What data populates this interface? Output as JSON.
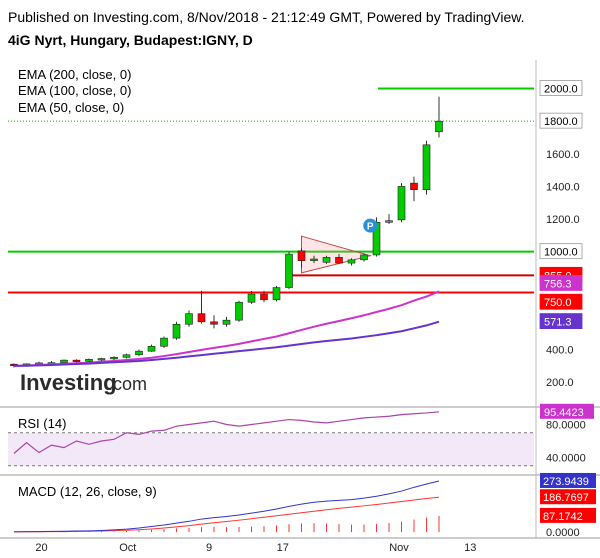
{
  "header": {
    "published_line": "Published on Investing.com, 8/Nov/2018 - 21:12:49 GMT, Powered by TradingView.",
    "symbol_line": "4iG Nyrt, Hungary, Budapest:IGNY, D"
  },
  "watermark": {
    "brand": "Investing",
    "suffix": ".com"
  },
  "price_pane": {
    "legend": [
      "EMA (200, close, 0)",
      "EMA (100, close, 0)",
      "EMA (50, close, 0)"
    ],
    "y_ticks": [
      200,
      400,
      600,
      800,
      1000,
      1200,
      1400,
      1600,
      1800,
      2000
    ],
    "y_tick_labels": [
      "200.0",
      "400.0",
      "",
      "",
      "1000.0",
      "1200.0",
      "1400.0",
      "1600.0",
      "1800.0",
      "2000.0"
    ],
    "ylim": [
      60,
      2175
    ],
    "badges": [
      {
        "value": 2000,
        "label": "2000.0",
        "color": "#ffffff",
        "text_color": "#000000"
      },
      {
        "value": 1800,
        "label": "1800.0",
        "color": "#ffffff",
        "text_color": "#000000"
      },
      {
        "value": 1000,
        "label": "1000.0",
        "color": "#ffffff",
        "text_color": "#000000"
      },
      {
        "value": 855,
        "label": "855.0",
        "color": "#ff0000",
        "text_color": "#ffffff"
      },
      {
        "value": 756.3,
        "label": "756.3",
        "color": "#cc33cc",
        "text_color": "#ffffff"
      },
      {
        "value": 750,
        "label": "750.0",
        "color": "#ff0000",
        "text_color": "#ffffff"
      },
      {
        "value": 571.3,
        "label": "571.3",
        "color": "#6633cc",
        "text_color": "#ffffff"
      }
    ],
    "horizontal_lines": [
      {
        "value": 2000,
        "color": "#00cc00",
        "style": "solid"
      },
      {
        "value": 1800,
        "color": "#00aa00",
        "style": "dotted"
      },
      {
        "value": 1000,
        "color": "#00cc00",
        "style": "solid"
      },
      {
        "value": 855,
        "color": "#cc0000",
        "style": "solid"
      },
      {
        "value": 750,
        "color": "#ff0000",
        "style": "solid"
      }
    ],
    "event_marker": "P"
  },
  "rsi_pane": {
    "label": "RSI (14)",
    "y_tick_labels": [
      "80.0000",
      "40.0000"
    ],
    "current": "95.4423"
  },
  "macd_pane": {
    "label": "MACD (12, 26, close, 9)",
    "y_tick_labels": [
      "0.0000"
    ],
    "badges": [
      {
        "label": "273.9439",
        "color": "#3333cc"
      },
      {
        "label": "186.7697",
        "color": "#ff0000"
      },
      {
        "label": "87.1742",
        "color": "#ff0000"
      }
    ]
  },
  "x_axis": {
    "ticks": [
      "20",
      "Oct",
      "9",
      "17",
      "Nov",
      "13"
    ]
  },
  "colors": {
    "up": "#00cc00",
    "down": "#ff0000",
    "ema200": "#cc33cc",
    "ema100": "#6633cc",
    "ema50": "#6633cc"
  },
  "chart_data": {
    "type": "candlestick",
    "title": "4iG Nyrt, Hungary, Budapest:IGNY, D",
    "candles": [
      {
        "o": 310,
        "h": 315,
        "l": 290,
        "c": 305
      },
      {
        "o": 305,
        "h": 315,
        "l": 295,
        "c": 312
      },
      {
        "o": 312,
        "h": 325,
        "l": 300,
        "c": 318
      },
      {
        "o": 318,
        "h": 330,
        "l": 305,
        "c": 320
      },
      {
        "o": 320,
        "h": 340,
        "l": 310,
        "c": 335
      },
      {
        "o": 335,
        "h": 340,
        "l": 320,
        "c": 328
      },
      {
        "o": 328,
        "h": 345,
        "l": 320,
        "c": 340
      },
      {
        "o": 340,
        "h": 350,
        "l": 330,
        "c": 345
      },
      {
        "o": 345,
        "h": 360,
        "l": 335,
        "c": 352
      },
      {
        "o": 352,
        "h": 375,
        "l": 345,
        "c": 368
      },
      {
        "o": 368,
        "h": 400,
        "l": 360,
        "c": 390
      },
      {
        "o": 390,
        "h": 430,
        "l": 385,
        "c": 420
      },
      {
        "o": 420,
        "h": 480,
        "l": 410,
        "c": 470
      },
      {
        "o": 470,
        "h": 570,
        "l": 460,
        "c": 555
      },
      {
        "o": 555,
        "h": 640,
        "l": 540,
        "c": 620
      },
      {
        "o": 620,
        "h": 760,
        "l": 560,
        "c": 570
      },
      {
        "o": 570,
        "h": 610,
        "l": 530,
        "c": 555
      },
      {
        "o": 555,
        "h": 600,
        "l": 540,
        "c": 580
      },
      {
        "o": 580,
        "h": 700,
        "l": 570,
        "c": 690
      },
      {
        "o": 690,
        "h": 760,
        "l": 680,
        "c": 740
      },
      {
        "o": 740,
        "h": 760,
        "l": 690,
        "c": 705
      },
      {
        "o": 705,
        "h": 790,
        "l": 695,
        "c": 780
      },
      {
        "o": 780,
        "h": 1000,
        "l": 770,
        "c": 985
      },
      {
        "o": 1005,
        "h": 1020,
        "l": 900,
        "c": 945
      },
      {
        "o": 945,
        "h": 975,
        "l": 930,
        "c": 955
      },
      {
        "o": 935,
        "h": 975,
        "l": 925,
        "c": 965
      },
      {
        "o": 965,
        "h": 985,
        "l": 925,
        "c": 930
      },
      {
        "o": 930,
        "h": 960,
        "l": 915,
        "c": 950
      },
      {
        "o": 950,
        "h": 990,
        "l": 940,
        "c": 980
      },
      {
        "o": 980,
        "h": 1210,
        "l": 970,
        "c": 1180
      },
      {
        "o": 1180,
        "h": 1230,
        "l": 1170,
        "c": 1190
      },
      {
        "o": 1195,
        "h": 1420,
        "l": 1180,
        "c": 1400
      },
      {
        "o": 1420,
        "h": 1460,
        "l": 1310,
        "c": 1380
      },
      {
        "o": 1380,
        "h": 1680,
        "l": 1350,
        "c": 1655
      },
      {
        "o": 1735,
        "h": 1950,
        "l": 1700,
        "c": 1800
      }
    ],
    "ema_200": [
      null,
      null,
      null,
      null,
      null,
      null,
      null,
      null,
      null,
      null,
      null,
      null,
      null,
      null,
      null,
      null,
      null,
      null,
      null,
      null,
      null,
      null,
      null,
      null,
      null,
      null,
      null,
      null,
      null,
      null,
      null,
      null,
      null,
      null,
      null
    ],
    "ema_100": [
      300,
      302,
      305,
      308,
      312,
      316,
      320,
      325,
      330,
      336,
      342,
      350,
      360,
      372,
      385,
      398,
      410,
      422,
      435,
      450,
      465,
      480,
      500,
      520,
      540,
      558,
      575,
      592,
      610,
      630,
      650,
      672,
      700,
      725,
      756
    ],
    "ema_50": [
      300,
      301,
      303,
      305,
      308,
      311,
      314,
      318,
      322,
      326,
      330,
      336,
      343,
      350,
      358,
      366,
      374,
      382,
      390,
      398,
      406,
      414,
      424,
      434,
      444,
      452,
      460,
      468,
      478,
      488,
      500,
      512,
      530,
      548,
      571
    ],
    "rsi": [
      52,
      60,
      58,
      64,
      62,
      68,
      66,
      70,
      73,
      80,
      82,
      86,
      88,
      90,
      87,
      85,
      84,
      86,
      87,
      88,
      86,
      85,
      86,
      87,
      85,
      84,
      86,
      87,
      88,
      89,
      90,
      92,
      93,
      94,
      95.4
    ],
    "macd": [
      2,
      3,
      3,
      4,
      5,
      6,
      7,
      9,
      12,
      16,
      22,
      30,
      38,
      48,
      58,
      70,
      78,
      84,
      92,
      102,
      112,
      124,
      138,
      150,
      160,
      166,
      170,
      174,
      182,
      192,
      205,
      220,
      240,
      258,
      274
    ],
    "macd_signal": [
      1,
      2,
      2,
      3,
      3,
      4,
      5,
      6,
      8,
      10,
      13,
      17,
      22,
      28,
      35,
      43,
      50,
      57,
      64,
      72,
      80,
      88,
      96,
      104,
      112,
      120,
      127,
      134,
      141,
      148,
      156,
      164,
      172,
      180,
      187
    ],
    "macd_hist": [
      1,
      1,
      1,
      1,
      2,
      2,
      2,
      3,
      4,
      6,
      9,
      13,
      16,
      20,
      23,
      27,
      28,
      27,
      28,
      30,
      32,
      36,
      42,
      46,
      48,
      46,
      43,
      40,
      41,
      44,
      49,
      56,
      68,
      78,
      87
    ]
  }
}
